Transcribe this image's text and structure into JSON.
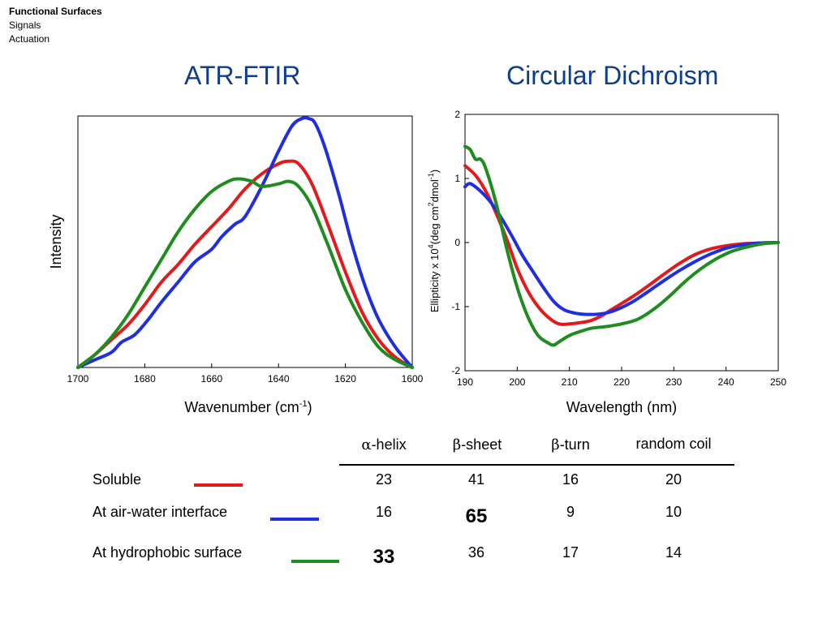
{
  "breadcrumb": {
    "items": [
      "Functional Surfaces",
      "Signals",
      "Actuation"
    ]
  },
  "colors": {
    "title": "#0b3d91",
    "soluble": "#e31a1c",
    "air_water": "#1f2fe0",
    "hydrophobic": "#1e8c1e"
  },
  "chart_data": [
    {
      "type": "line",
      "title": "ATR-FTIR",
      "xlabel": "Wavenumber (cm-1)",
      "xlabel_parts": {
        "main": "Wavenumber (cm",
        "sup": "-1",
        "close": ")"
      },
      "ylabel": "Intensity",
      "xlim": [
        1700,
        1600
      ],
      "x_reversed": true,
      "ylim": [
        0,
        1
      ],
      "yticks_shown": false,
      "xticks": [
        1700,
        1680,
        1660,
        1640,
        1620,
        1600
      ],
      "xtick_labels": [
        "1700",
        "1680",
        "1660",
        "1640",
        "1620",
        "1600"
      ],
      "grid": false,
      "series": [
        {
          "color_key": "soluble",
          "x": [
            1700,
            1695,
            1690,
            1685,
            1680,
            1675,
            1670,
            1665,
            1660,
            1655,
            1650,
            1645,
            1640,
            1637,
            1634,
            1630,
            1625,
            1620,
            1615,
            1610,
            1605,
            1600
          ],
          "y": [
            0.0,
            0.05,
            0.11,
            0.17,
            0.25,
            0.34,
            0.41,
            0.49,
            0.56,
            0.63,
            0.71,
            0.77,
            0.81,
            0.82,
            0.81,
            0.73,
            0.56,
            0.38,
            0.22,
            0.11,
            0.04,
            0.0
          ]
        },
        {
          "color_key": "air_water",
          "x": [
            1700,
            1695,
            1690,
            1687,
            1683,
            1679,
            1675,
            1670,
            1665,
            1660,
            1657,
            1653,
            1650,
            1645,
            1640,
            1636,
            1633,
            1631,
            1629,
            1626,
            1622,
            1618,
            1614,
            1610,
            1605,
            1600
          ],
          "y": [
            0.0,
            0.03,
            0.06,
            0.1,
            0.13,
            0.19,
            0.26,
            0.34,
            0.42,
            0.47,
            0.52,
            0.57,
            0.6,
            0.72,
            0.86,
            0.96,
            0.99,
            0.99,
            0.97,
            0.87,
            0.69,
            0.49,
            0.32,
            0.19,
            0.08,
            0.0
          ]
        },
        {
          "color_key": "hydrophobic",
          "x": [
            1700,
            1695,
            1690,
            1685,
            1680,
            1675,
            1670,
            1665,
            1660,
            1655,
            1652,
            1648,
            1645,
            1640,
            1637,
            1634,
            1630,
            1625,
            1620,
            1615,
            1610,
            1605,
            1600
          ],
          "y": [
            0.0,
            0.05,
            0.12,
            0.21,
            0.32,
            0.43,
            0.54,
            0.63,
            0.7,
            0.74,
            0.75,
            0.74,
            0.72,
            0.73,
            0.74,
            0.72,
            0.64,
            0.48,
            0.31,
            0.18,
            0.08,
            0.03,
            0.0
          ]
        }
      ]
    },
    {
      "type": "line",
      "title": "Circular Dichroism",
      "xlabel": "Wavelength (nm)",
      "ylabel": "Ellipticity x 10^4 (deg cm^2 dmol^-1)",
      "ylabel_parts": {
        "a": "Ellipticity x 10",
        "s1": "4",
        "b": "(deg cm",
        "s2": "2",
        "c": "dmol",
        "s3": "-1",
        "d": ")"
      },
      "xlim": [
        190,
        250
      ],
      "ylim": [
        -2,
        2
      ],
      "xticks": [
        190,
        200,
        210,
        220,
        230,
        240,
        250
      ],
      "xtick_labels": [
        "190",
        "200",
        "210",
        "220",
        "230",
        "240",
        "250"
      ],
      "yticks": [
        -2,
        -1,
        0,
        1,
        2
      ],
      "ytick_labels": [
        "-2",
        "-1",
        "0",
        "1",
        "2"
      ],
      "grid": false,
      "series": [
        {
          "color_key": "soluble",
          "x": [
            190,
            192,
            194,
            196,
            198,
            200,
            202,
            204,
            206,
            208,
            210,
            212,
            214,
            216,
            218,
            220,
            222,
            225,
            228,
            231,
            234,
            237,
            240,
            243,
            246,
            250
          ],
          "y": [
            1.2,
            1.05,
            0.8,
            0.45,
            0.05,
            -0.4,
            -0.75,
            -1.0,
            -1.17,
            -1.27,
            -1.27,
            -1.25,
            -1.22,
            -1.15,
            -1.05,
            -0.95,
            -0.85,
            -0.68,
            -0.5,
            -0.33,
            -0.19,
            -0.1,
            -0.05,
            -0.02,
            -0.01,
            0.0
          ]
        },
        {
          "color_key": "air_water",
          "x": [
            190,
            191,
            193,
            195,
            197,
            199,
            201,
            203,
            205,
            207,
            209,
            211,
            213,
            215,
            217,
            219,
            222,
            225,
            228,
            231,
            234,
            237,
            240,
            243,
            246,
            250
          ],
          "y": [
            0.87,
            0.92,
            0.8,
            0.62,
            0.38,
            0.1,
            -0.2,
            -0.45,
            -0.7,
            -0.92,
            -1.05,
            -1.1,
            -1.12,
            -1.12,
            -1.1,
            -1.05,
            -0.93,
            -0.77,
            -0.6,
            -0.44,
            -0.3,
            -0.18,
            -0.09,
            -0.04,
            -0.01,
            0.0
          ]
        },
        {
          "color_key": "hydrophobic",
          "x": [
            190,
            191,
            192,
            193,
            194,
            196,
            198,
            200,
            202,
            204,
            206,
            207,
            208,
            210,
            212,
            214,
            216,
            218,
            220,
            223,
            226,
            229,
            232,
            235,
            238,
            241,
            244,
            247,
            250
          ],
          "y": [
            1.5,
            1.45,
            1.3,
            1.3,
            1.15,
            0.6,
            -0.1,
            -0.7,
            -1.15,
            -1.45,
            -1.57,
            -1.6,
            -1.55,
            -1.45,
            -1.39,
            -1.34,
            -1.32,
            -1.3,
            -1.27,
            -1.2,
            -1.05,
            -0.85,
            -0.62,
            -0.42,
            -0.26,
            -0.14,
            -0.07,
            -0.02,
            0.0
          ]
        }
      ]
    }
  ],
  "table": {
    "columns": [
      {
        "greek": "α",
        "label": "-helix"
      },
      {
        "greek": "β",
        "label": "-sheet"
      },
      {
        "greek": "β",
        "label": "-turn"
      },
      {
        "greek": "",
        "label": "random coil"
      }
    ],
    "rows": [
      {
        "label": "Soluble",
        "color_key": "soluble",
        "values": [
          "23",
          "41",
          "16",
          "20"
        ],
        "bold_index": -1
      },
      {
        "label": "At air-water interface",
        "color_key": "air_water",
        "values": [
          "16",
          "65",
          "9",
          "10"
        ],
        "bold_index": 1
      },
      {
        "label": "At hydrophobic surface",
        "color_key": "hydrophobic",
        "values": [
          "33",
          "36",
          "17",
          "14"
        ],
        "bold_index": 0
      }
    ]
  }
}
